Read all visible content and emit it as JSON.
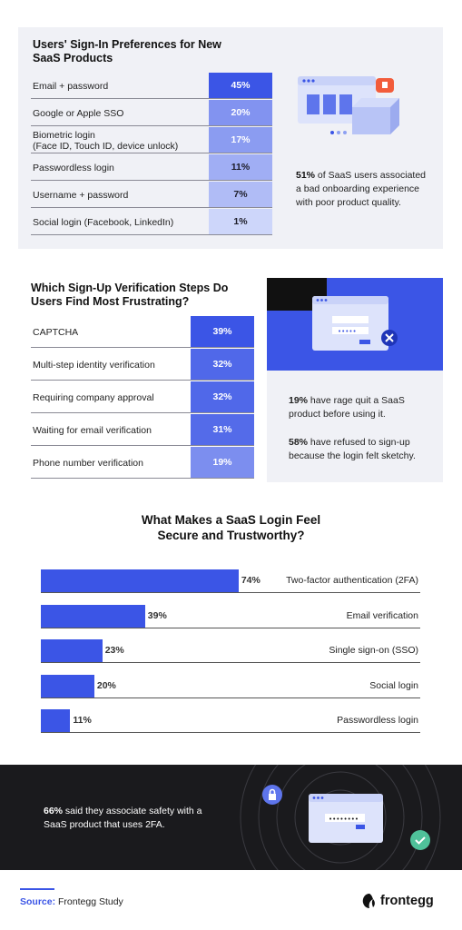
{
  "colors": {
    "accent": "#3b55e6",
    "dark_bg": "#1a1a1d",
    "panel_bg": "#f0f1f6"
  },
  "section1": {
    "title": "Users' Sign-In Preferences for New SaaS Products",
    "stat_bold": "51%",
    "stat_text": " of SaaS users associated a bad onboarding experience with poor product quality."
  },
  "section2": {
    "title": "Which Sign-Up Verification Steps Do Users Find Most Frustrating?",
    "stat1_bold": "19%",
    "stat1_text": " have rage quit a SaaS product before using it.",
    "stat2_bold": "58%",
    "stat2_text": " have refused to sign-up because the login felt sketchy."
  },
  "section3": {
    "title": "What Makes a SaaS Login Feel Secure and Trustworthy?"
  },
  "dark_section": {
    "stat_bold": "66%",
    "stat_text": " said they associate safety with a SaaS product that uses 2FA."
  },
  "footer": {
    "source_label": "Source:",
    "source_text": " Frontegg Study",
    "logo_text": "frontegg"
  },
  "chart_data": [
    {
      "type": "table",
      "title": "Users' Sign-In Preferences for New SaaS Products",
      "categories": [
        "Email + password",
        "Google or Apple SSO",
        "Biometric login\n(Face ID, Touch ID, device unlock)",
        "Passwordless login",
        "Username + password",
        "Social login (Facebook, LinkedIn)"
      ],
      "values": [
        45,
        20,
        17,
        11,
        7,
        1
      ],
      "value_labels": [
        "45%",
        "20%",
        "17%",
        "11%",
        "7%",
        "1%"
      ]
    },
    {
      "type": "table",
      "title": "Which Sign-Up Verification Steps Do Users Find Most Frustrating?",
      "categories": [
        "CAPTCHA",
        "Multi-step identity verification",
        "Requiring company approval",
        "Waiting for email verification",
        "Phone number verification"
      ],
      "values": [
        39,
        32,
        32,
        31,
        19
      ],
      "value_labels": [
        "39%",
        "32%",
        "32%",
        "31%",
        "19%"
      ]
    },
    {
      "type": "bar",
      "orientation": "horizontal",
      "title": "What Makes a SaaS Login Feel Secure and Trustworthy?",
      "categories": [
        "Two-factor authentication (2FA)",
        "Email verification",
        "Single sign-on (SSO)",
        "Social login",
        "Passwordless login"
      ],
      "values": [
        74,
        39,
        23,
        20,
        11
      ],
      "value_labels": [
        "74%",
        "39%",
        "23%",
        "20%",
        "11%"
      ],
      "xlim": [
        0,
        142
      ]
    }
  ]
}
